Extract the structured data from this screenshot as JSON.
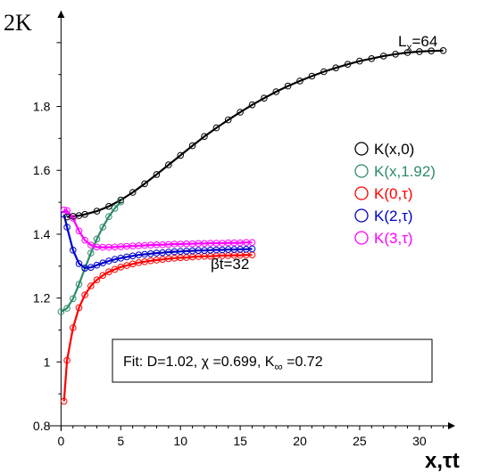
{
  "chart_data": {
    "type": "line",
    "xlabel": "x,τt",
    "ylabel": "2K",
    "xlim": [
      -1,
      33
    ],
    "ylim": [
      0.8,
      2.1
    ],
    "xticks": [
      "0",
      "5",
      "10",
      "15",
      "20",
      "25",
      "30"
    ],
    "yticks": [
      "0.8",
      "1",
      "1.2",
      "1.4",
      "1.6",
      "1.8",
      "2K"
    ],
    "ytick_values": [
      0.8,
      1.0,
      1.2,
      1.4,
      1.6,
      1.8,
      2.0
    ],
    "xtick_values": [
      0,
      5,
      10,
      15,
      20,
      25,
      30
    ],
    "legend_position": "right",
    "annotations": {
      "lx": "L",
      "lx_sub": "x",
      "lx_val": "=64",
      "bt": "βt=32"
    },
    "fit_text": {
      "prefix": "Fit: D=1.02, χ =0.699, K",
      "sub": "∞",
      "suffix": " =0.72"
    },
    "series": [
      {
        "name": "K(x,0)",
        "color": "#000000",
        "x": [
          0.5,
          1.0,
          1.5,
          2.0,
          3.0,
          4.0,
          5.0,
          6.0,
          7.0,
          8.0,
          9.0,
          10.0,
          11.0,
          12.0,
          13.0,
          14.0,
          15.0,
          16.0,
          17.0,
          18.0,
          19.0,
          20.0,
          21.0,
          22.0,
          23.0,
          24.0,
          25.0,
          26.0,
          27.0,
          28.0,
          29.0,
          30.0,
          31.0,
          32.0
        ],
        "y": [
          1.454,
          1.456,
          1.458,
          1.462,
          1.472,
          1.487,
          1.507,
          1.531,
          1.558,
          1.587,
          1.617,
          1.647,
          1.677,
          1.706,
          1.733,
          1.758,
          1.782,
          1.805,
          1.826,
          1.846,
          1.864,
          1.88,
          1.895,
          1.909,
          1.921,
          1.932,
          1.942,
          1.95,
          1.958,
          1.964,
          1.969,
          1.972,
          1.974,
          1.975
        ]
      },
      {
        "name": "K(x,1.92)",
        "color": "#2e8b6a",
        "x": [
          0.0,
          0.5,
          1.0,
          1.5,
          2.0,
          2.5,
          3.0,
          3.5,
          4.0,
          4.5,
          5.0
        ],
        "y": [
          1.157,
          1.168,
          1.198,
          1.243,
          1.293,
          1.341,
          1.385,
          1.422,
          1.455,
          1.481,
          1.501
        ]
      },
      {
        "name": "K(0,τ)",
        "color": "#ff0000",
        "x": [
          0.25,
          0.5,
          1.0,
          1.5,
          2.0,
          2.5,
          3.0,
          3.5,
          4.0,
          4.5,
          5.0,
          5.5,
          6.0,
          6.5,
          7.0,
          7.5,
          8.0,
          8.5,
          9.0,
          9.5,
          10.0,
          10.5,
          11.0,
          11.5,
          12.0,
          12.5,
          13.0,
          13.5,
          14.0,
          14.5,
          15.0,
          15.5,
          16.0
        ],
        "y": [
          0.877,
          1.005,
          1.107,
          1.17,
          1.21,
          1.238,
          1.257,
          1.271,
          1.282,
          1.29,
          1.297,
          1.302,
          1.307,
          1.311,
          1.314,
          1.317,
          1.319,
          1.321,
          1.323,
          1.325,
          1.326,
          1.327,
          1.329,
          1.33,
          1.331,
          1.331,
          1.332,
          1.333,
          1.333,
          1.334,
          1.334,
          1.335,
          1.335
        ]
      },
      {
        "name": "K(2,τ)",
        "color": "#0000cc",
        "x": [
          0.25,
          0.5,
          1.0,
          1.5,
          2.0,
          2.5,
          3.0,
          3.5,
          4.0,
          4.5,
          5.0,
          5.5,
          6.0,
          6.5,
          7.0,
          7.5,
          8.0,
          8.5,
          9.0,
          9.5,
          10.0,
          10.5,
          11.0,
          11.5,
          12.0,
          12.5,
          13.0,
          13.5,
          14.0,
          14.5,
          15.0,
          15.5,
          16.0
        ],
        "y": [
          1.462,
          1.422,
          1.35,
          1.308,
          1.294,
          1.296,
          1.303,
          1.31,
          1.316,
          1.321,
          1.325,
          1.329,
          1.332,
          1.335,
          1.337,
          1.339,
          1.341,
          1.342,
          1.344,
          1.345,
          1.346,
          1.347,
          1.348,
          1.349,
          1.349,
          1.35,
          1.351,
          1.351,
          1.352,
          1.352,
          1.353,
          1.353,
          1.354
        ]
      },
      {
        "name": "K(3,τ)",
        "color": "#ff00ff",
        "x": [
          0.25,
          0.5,
          1.0,
          1.5,
          2.0,
          2.5,
          3.0,
          3.5,
          4.0,
          4.5,
          5.0,
          5.5,
          6.0,
          6.5,
          7.0,
          7.5,
          8.0,
          8.5,
          9.0,
          9.5,
          10.0,
          10.5,
          11.0,
          11.5,
          12.0,
          12.5,
          13.0,
          13.5,
          14.0,
          14.5,
          15.0,
          15.5,
          16.0
        ],
        "y": [
          1.476,
          1.474,
          1.45,
          1.41,
          1.381,
          1.366,
          1.36,
          1.359,
          1.359,
          1.36,
          1.361,
          1.362,
          1.363,
          1.364,
          1.365,
          1.366,
          1.367,
          1.367,
          1.368,
          1.369,
          1.369,
          1.37,
          1.37,
          1.371,
          1.371,
          1.372,
          1.372,
          1.372,
          1.373,
          1.373,
          1.373,
          1.374,
          1.374
        ]
      }
    ]
  }
}
